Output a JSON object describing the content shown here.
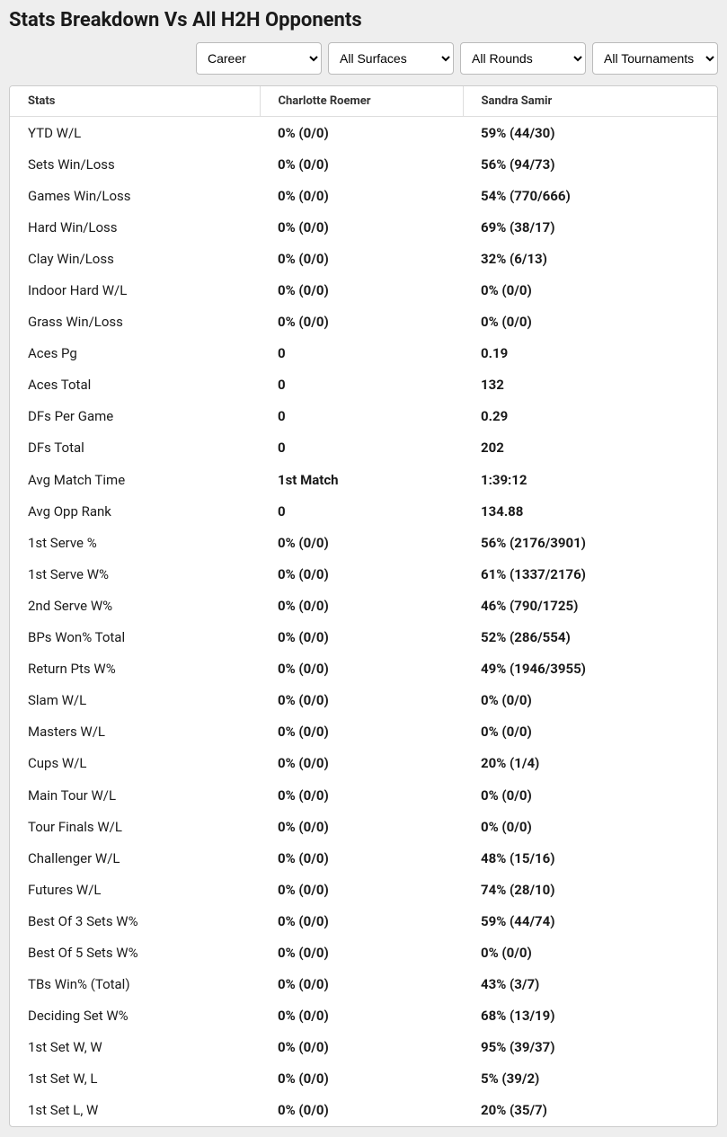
{
  "title": "Stats Breakdown Vs All H2H Opponents",
  "filters": {
    "career": "Career",
    "surfaces": "All Surfaces",
    "rounds": "All Rounds",
    "tournaments": "All Tournaments"
  },
  "columns": {
    "stat": "Stats",
    "p1": "Charlotte Roemer",
    "p2": "Sandra Samir"
  },
  "rows": [
    {
      "stat": "YTD W/L",
      "p1": "0% (0/0)",
      "p2": "59% (44/30)"
    },
    {
      "stat": "Sets Win/Loss",
      "p1": "0% (0/0)",
      "p2": "56% (94/73)"
    },
    {
      "stat": "Games Win/Loss",
      "p1": "0% (0/0)",
      "p2": "54% (770/666)"
    },
    {
      "stat": "Hard Win/Loss",
      "p1": "0% (0/0)",
      "p2": "69% (38/17)"
    },
    {
      "stat": "Clay Win/Loss",
      "p1": "0% (0/0)",
      "p2": "32% (6/13)"
    },
    {
      "stat": "Indoor Hard W/L",
      "p1": "0% (0/0)",
      "p2": "0% (0/0)"
    },
    {
      "stat": "Grass Win/Loss",
      "p1": "0% (0/0)",
      "p2": "0% (0/0)"
    },
    {
      "stat": "Aces Pg",
      "p1": "0",
      "p2": "0.19"
    },
    {
      "stat": "Aces Total",
      "p1": "0",
      "p2": "132"
    },
    {
      "stat": "DFs Per Game",
      "p1": "0",
      "p2": "0.29"
    },
    {
      "stat": "DFs Total",
      "p1": "0",
      "p2": "202"
    },
    {
      "stat": "Avg Match Time",
      "p1": "1st Match",
      "p2": "1:39:12"
    },
    {
      "stat": "Avg Opp Rank",
      "p1": "0",
      "p2": "134.88"
    },
    {
      "stat": "1st Serve %",
      "p1": "0% (0/0)",
      "p2": "56% (2176/3901)"
    },
    {
      "stat": "1st Serve W%",
      "p1": "0% (0/0)",
      "p2": "61% (1337/2176)"
    },
    {
      "stat": "2nd Serve W%",
      "p1": "0% (0/0)",
      "p2": "46% (790/1725)"
    },
    {
      "stat": "BPs Won% Total",
      "p1": "0% (0/0)",
      "p2": "52% (286/554)"
    },
    {
      "stat": "Return Pts W%",
      "p1": "0% (0/0)",
      "p2": "49% (1946/3955)"
    },
    {
      "stat": "Slam W/L",
      "p1": "0% (0/0)",
      "p2": "0% (0/0)"
    },
    {
      "stat": "Masters W/L",
      "p1": "0% (0/0)",
      "p2": "0% (0/0)"
    },
    {
      "stat": "Cups W/L",
      "p1": "0% (0/0)",
      "p2": "20% (1/4)"
    },
    {
      "stat": "Main Tour W/L",
      "p1": "0% (0/0)",
      "p2": "0% (0/0)"
    },
    {
      "stat": "Tour Finals W/L",
      "p1": "0% (0/0)",
      "p2": "0% (0/0)"
    },
    {
      "stat": "Challenger W/L",
      "p1": "0% (0/0)",
      "p2": "48% (15/16)"
    },
    {
      "stat": "Futures W/L",
      "p1": "0% (0/0)",
      "p2": "74% (28/10)"
    },
    {
      "stat": "Best Of 3 Sets W%",
      "p1": "0% (0/0)",
      "p2": "59% (44/74)"
    },
    {
      "stat": "Best Of 5 Sets W%",
      "p1": "0% (0/0)",
      "p2": "0% (0/0)"
    },
    {
      "stat": "TBs Win% (Total)",
      "p1": "0% (0/0)",
      "p2": "43% (3/7)"
    },
    {
      "stat": "Deciding Set W%",
      "p1": "0% (0/0)",
      "p2": "68% (13/19)"
    },
    {
      "stat": "1st Set W, W",
      "p1": "0% (0/0)",
      "p2": "95% (39/37)"
    },
    {
      "stat": "1st Set W, L",
      "p1": "0% (0/0)",
      "p2": "5% (39/2)"
    },
    {
      "stat": "1st Set L, W",
      "p1": "0% (0/0)",
      "p2": "20% (35/7)"
    }
  ]
}
